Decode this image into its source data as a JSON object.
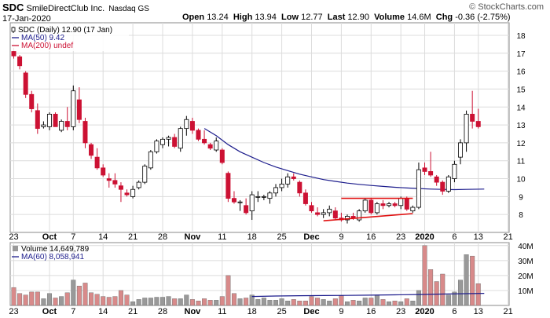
{
  "header": {
    "ticker": "SDC",
    "company": "SmileDirectClub Inc.",
    "exchange": "Nasdaq GS",
    "date": "17-Jan-2020",
    "watermark": "© StockCharts.com",
    "quote": {
      "open_label": "Open",
      "open": "13.24",
      "high_label": "High",
      "high": "13.94",
      "low_label": "Low",
      "low": "12.77",
      "last_label": "Last",
      "last": "12.90",
      "volume_label": "Volume",
      "volume": "14.6M",
      "chg_label": "Chg",
      "chg": "-0.36 (-2.75%)"
    }
  },
  "legend": {
    "price": "SDC (Daily) 12.90 (17 Jan)",
    "ma50": "MA(50) 9.42",
    "ma200": "MA(200) undef",
    "volume": "Volume 14,649,789",
    "ma60": "MA(60) 8,058,941"
  },
  "colors": {
    "up": "#ffffff",
    "down": "#cc1133",
    "up_volume": "#999999",
    "down_volume": "#d88a8a",
    "ma": "#1c1c8c",
    "trendline": "#e01010",
    "grid": "#dcdcdc"
  },
  "chart_data": [
    {
      "type": "candlestick",
      "title": "SDC (Daily) 12.90 (17 Jan)",
      "y_axis_side": "right",
      "ylim": [
        7,
        18.7
      ],
      "y_ticks": [
        "8",
        "9",
        "10",
        "11",
        "12",
        "13",
        "14",
        "15",
        "16",
        "17",
        "18"
      ],
      "x_tick_labels": [
        {
          "label": "23",
          "bold": false
        },
        {
          "label": "Oct",
          "bold": true
        },
        {
          "label": "7",
          "bold": false
        },
        {
          "label": "14",
          "bold": false
        },
        {
          "label": "21",
          "bold": false
        },
        {
          "label": "28",
          "bold": false
        },
        {
          "label": "Nov",
          "bold": true
        },
        {
          "label": "11",
          "bold": false
        },
        {
          "label": "18",
          "bold": false
        },
        {
          "label": "25",
          "bold": false
        },
        {
          "label": "Dec",
          "bold": true
        },
        {
          "label": "9",
          "bold": false
        },
        {
          "label": "16",
          "bold": false
        },
        {
          "label": "23",
          "bold": false
        },
        {
          "label": "2020",
          "bold": true
        },
        {
          "label": "6",
          "bold": false
        },
        {
          "label": "13",
          "bold": false
        },
        {
          "label": "21",
          "bold": false
        }
      ],
      "x_tick_sessions": [
        0,
        6,
        10,
        15,
        20,
        25,
        30,
        35,
        40,
        45,
        50,
        55,
        60,
        65,
        69,
        74,
        78,
        83
      ],
      "grid": true,
      "series": [
        {
          "name": "SDC (Daily)",
          "ohlc": [
            [
              17.1,
              17.3,
              16.7,
              16.85
            ],
            [
              16.8,
              16.9,
              16.1,
              16.3
            ],
            [
              15.9,
              16.0,
              14.5,
              14.7
            ],
            [
              14.7,
              14.9,
              13.7,
              13.9
            ],
            [
              13.8,
              14.2,
              12.5,
              12.8
            ],
            [
              12.9,
              13.2,
              12.8,
              13.0
            ],
            [
              12.9,
              13.7,
              12.7,
              13.6
            ],
            [
              13.6,
              13.7,
              12.9,
              12.9
            ],
            [
              12.7,
              13.3,
              12.6,
              13.2
            ],
            [
              13.2,
              14.0,
              12.7,
              12.9
            ],
            [
              12.9,
              15.2,
              12.7,
              14.9
            ],
            [
              14.4,
              15.1,
              13.1,
              13.3
            ],
            [
              13.2,
              13.4,
              11.7,
              12.0
            ],
            [
              11.9,
              12.0,
              11.1,
              11.3
            ],
            [
              11.2,
              11.7,
              10.5,
              10.6
            ],
            [
              10.6,
              10.8,
              10.1,
              10.2
            ],
            [
              10.0,
              10.3,
              9.5,
              9.9
            ],
            [
              9.9,
              10.3,
              9.5,
              9.7
            ],
            [
              9.6,
              9.8,
              8.7,
              9.4
            ],
            [
              9.2,
              9.4,
              9.0,
              9.1
            ],
            [
              9.0,
              9.6,
              8.9,
              9.4
            ],
            [
              9.5,
              9.9,
              9.4,
              9.8
            ],
            [
              9.8,
              10.8,
              9.7,
              10.7
            ],
            [
              10.6,
              11.6,
              10.5,
              11.5
            ],
            [
              11.5,
              12.2,
              11.4,
              12.1
            ],
            [
              11.9,
              12.3,
              11.7,
              12.2
            ],
            [
              12.2,
              12.4,
              11.8,
              12.3
            ],
            [
              12.3,
              12.5,
              11.7,
              11.8
            ],
            [
              11.7,
              12.9,
              11.5,
              12.8
            ],
            [
              12.8,
              13.5,
              12.4,
              13.3
            ],
            [
              13.2,
              13.4,
              12.5,
              12.7
            ],
            [
              12.7,
              12.8,
              12.1,
              12.2
            ],
            [
              12.2,
              12.7,
              11.9,
              12.0
            ],
            [
              11.9,
              12.0,
              11.6,
              11.7
            ],
            [
              11.6,
              12.3,
              11.5,
              12.1
            ],
            [
              11.6,
              11.7,
              10.8,
              10.9
            ],
            [
              10.3,
              10.4,
              8.7,
              8.9
            ],
            [
              8.9,
              9.3,
              8.6,
              8.7
            ],
            [
              8.7,
              8.8,
              8.2,
              8.7
            ],
            [
              8.5,
              8.9,
              8.0,
              8.1
            ],
            [
              8.2,
              9.3,
              7.7,
              9.1
            ],
            [
              9.0,
              9.3,
              8.7,
              9.0
            ],
            [
              9.0,
              9.1,
              8.8,
              9.0
            ],
            [
              8.9,
              9.3,
              8.6,
              9.2
            ],
            [
              9.2,
              9.7,
              9.0,
              9.5
            ],
            [
              9.5,
              10.0,
              9.3,
              9.7
            ],
            [
              9.7,
              10.3,
              9.5,
              10.1
            ],
            [
              10.1,
              10.3,
              9.9,
              10.0
            ],
            [
              9.8,
              9.9,
              9.0,
              9.2
            ],
            [
              9.2,
              9.4,
              8.5,
              8.6
            ],
            [
              8.5,
              8.7,
              8.1,
              8.2
            ],
            [
              8.1,
              8.4,
              7.9,
              8.0
            ],
            [
              8.0,
              8.3,
              7.8,
              8.1
            ],
            [
              8.1,
              8.5,
              7.9,
              8.3
            ],
            [
              8.2,
              8.4,
              7.7,
              7.8
            ],
            [
              7.8,
              8.1,
              7.6,
              7.7
            ],
            [
              7.7,
              8.0,
              7.5,
              7.9
            ],
            [
              7.9,
              8.1,
              7.7,
              7.8
            ],
            [
              7.7,
              8.3,
              7.6,
              8.2
            ],
            [
              8.2,
              8.9,
              8.1,
              8.8
            ],
            [
              8.8,
              8.9,
              8.0,
              8.1
            ],
            [
              8.1,
              8.7,
              8.0,
              8.6
            ],
            [
              8.6,
              8.8,
              8.3,
              8.5
            ],
            [
              8.5,
              8.7,
              8.4,
              8.6
            ],
            [
              8.6,
              8.7,
              8.4,
              8.5
            ],
            [
              8.5,
              9.0,
              8.3,
              8.9
            ],
            [
              8.9,
              9.0,
              8.2,
              8.3
            ],
            [
              8.2,
              8.5,
              8.1,
              8.4
            ],
            [
              8.4,
              10.9,
              8.3,
              10.5
            ],
            [
              10.6,
              10.9,
              10.2,
              10.4
            ],
            [
              10.4,
              11.5,
              10.1,
              10.2
            ],
            [
              10.1,
              10.2,
              9.6,
              9.8
            ],
            [
              9.8,
              9.9,
              9.1,
              9.3
            ],
            [
              9.3,
              10.2,
              9.2,
              10.1
            ],
            [
              10.0,
              11.0,
              9.8,
              10.8
            ],
            [
              11.2,
              12.2,
              10.8,
              12.0
            ],
            [
              12.0,
              13.8,
              11.5,
              13.6
            ],
            [
              13.6,
              14.9,
              12.8,
              13.2
            ],
            [
              13.2,
              13.9,
              12.8,
              12.9
            ]
          ]
        },
        {
          "name": "MA(50)",
          "points": [
            [
              32,
              12.8
            ],
            [
              34,
              12.4
            ],
            [
              36,
              11.9
            ],
            [
              38,
              11.5
            ],
            [
              40,
              11.2
            ],
            [
              42,
              10.9
            ],
            [
              44,
              10.65
            ],
            [
              46,
              10.45
            ],
            [
              48,
              10.25
            ],
            [
              50,
              10.1
            ],
            [
              52,
              9.95
            ],
            [
              54,
              9.85
            ],
            [
              56,
              9.75
            ],
            [
              58,
              9.68
            ],
            [
              60,
              9.62
            ],
            [
              62,
              9.57
            ],
            [
              64,
              9.52
            ],
            [
              66,
              9.48
            ],
            [
              68,
              9.45
            ],
            [
              70,
              9.42
            ],
            [
              72,
              9.4
            ],
            [
              74,
              9.39
            ],
            [
              76,
              9.4
            ],
            [
              79,
              9.42
            ]
          ]
        },
        {
          "name": "trendline-top",
          "points": [
            [
              55,
              8.9
            ],
            [
              67,
              8.9
            ]
          ]
        },
        {
          "name": "trendline-bottom",
          "points": [
            [
              52,
              7.65
            ],
            [
              67,
              8.05
            ]
          ]
        }
      ]
    },
    {
      "type": "bar",
      "title": "Volume 14,649,789",
      "ylim": [
        0,
        42
      ],
      "y_ticks": [
        "10M",
        "20M",
        "30M",
        "40M"
      ],
      "x_tick_labels": [],
      "series": [
        {
          "name": "Volume",
          "values": [
            12.0,
            8.0,
            7.0,
            9.0,
            9.0,
            4.5,
            8.0,
            5.0,
            6.0,
            8.5,
            17.0,
            13.0,
            15.0,
            8.5,
            7.5,
            6.0,
            5.5,
            6.0,
            10.0,
            7.0,
            2.5,
            4.0,
            5.0,
            5.0,
            5.5,
            5.5,
            6.0,
            4.5,
            4.5,
            7.0,
            4.0,
            3.0,
            4.5,
            3.5,
            3.5,
            6.0,
            20.0,
            8.0,
            4.5,
            5.0,
            7.0,
            4.0,
            5.0,
            3.5,
            3.5,
            4.5,
            3.0,
            4.0,
            3.0,
            3.0,
            6.0,
            5.0,
            4.0,
            3.0,
            4.5,
            6.5,
            2.5,
            3.5,
            3.0,
            5.0,
            5.0,
            7.0,
            4.0,
            2.5,
            3.0,
            2.5,
            4.5,
            3.0,
            10.0,
            40.0,
            24.0,
            16.0,
            21.0,
            7.0,
            9.0,
            17.0,
            34.0,
            33.0,
            14.6
          ]
        },
        {
          "name": "MA(60)",
          "points": [
            [
              40,
              6.0
            ],
            [
              44,
              6.3
            ],
            [
              48,
              6.5
            ],
            [
              52,
              6.6
            ],
            [
              56,
              6.7
            ],
            [
              60,
              6.9
            ],
            [
              64,
              7.1
            ],
            [
              68,
              7.3
            ],
            [
              72,
              7.6
            ],
            [
              76,
              7.9
            ],
            [
              79,
              8.06
            ]
          ]
        }
      ]
    }
  ]
}
